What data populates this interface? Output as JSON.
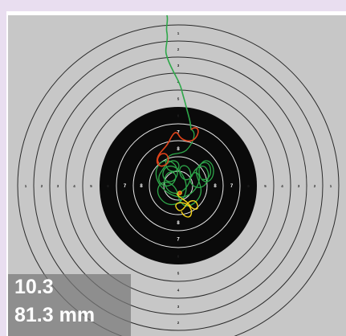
{
  "colors": {
    "background": "#e9def0",
    "panel": "#c7c7c7",
    "ring_line": "#2a2a2a",
    "bull": "#0a0a0a",
    "bull_ring_line": "#e8e8e8",
    "trace_green": "#2ea84a",
    "trace_red": "#e0431a",
    "trace_yellow": "#f2d21a",
    "readout_bg": "#7a7a7a"
  },
  "target": {
    "ring_labels": [
      "1",
      "2",
      "3",
      "4",
      "5",
      "6",
      "7",
      "8"
    ]
  },
  "readout": {
    "score": "10.3",
    "distance": "81.3 mm"
  }
}
